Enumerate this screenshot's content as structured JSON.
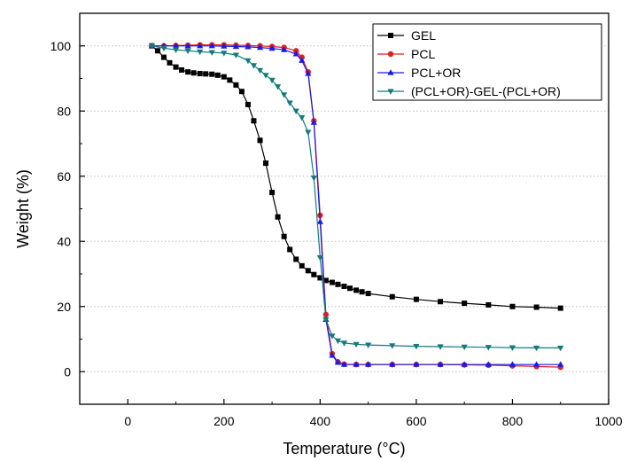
{
  "chart_data": {
    "type": "line",
    "xlabel": "Temperature (°C)",
    "ylabel": "Weight (%)",
    "xlim": [
      -100,
      1000
    ],
    "ylim": [
      -10,
      110
    ],
    "xticks": [
      0,
      200,
      400,
      600,
      800,
      1000
    ],
    "yticks": [
      0,
      20,
      40,
      60,
      80,
      100
    ],
    "grid": "horizontal dotted",
    "legend_position": "top-right",
    "series": [
      {
        "name": "GEL",
        "color": "#000000",
        "marker": "square",
        "x": [
          50,
          62,
          75,
          87,
          100,
          112,
          125,
          137,
          150,
          162,
          175,
          187,
          200,
          212,
          225,
          237,
          250,
          262,
          275,
          287,
          300,
          312,
          325,
          337,
          350,
          362,
          375,
          387,
          400,
          412,
          425,
          437,
          450,
          462,
          475,
          487,
          500,
          550,
          600,
          650,
          700,
          750,
          800,
          850,
          900
        ],
        "y": [
          100,
          98.5,
          96.5,
          94.8,
          93.5,
          92.6,
          92.0,
          91.7,
          91.5,
          91.4,
          91.3,
          91.0,
          90.5,
          89.5,
          88,
          86,
          82,
          77,
          71,
          64,
          55,
          47.5,
          41.5,
          37.5,
          34.5,
          32.5,
          31.0,
          29.8,
          28.8,
          28.0,
          27.4,
          26.8,
          26.2,
          25.6,
          25.0,
          24.5,
          24.0,
          23.0,
          22.2,
          21.5,
          21.0,
          20.5,
          20.0,
          19.8,
          19.5
        ]
      },
      {
        "name": "PCL",
        "color": "#e0201b",
        "marker": "circle",
        "x": [
          50,
          75,
          100,
          125,
          150,
          175,
          200,
          225,
          250,
          275,
          300,
          325,
          350,
          362,
          375,
          387,
          400,
          412,
          425,
          437,
          450,
          475,
          500,
          550,
          600,
          650,
          700,
          750,
          800,
          850,
          900
        ],
        "y": [
          100,
          100,
          100.1,
          100.2,
          100.3,
          100.3,
          100.3,
          100.2,
          100.1,
          100,
          99.8,
          99.5,
          98.5,
          96.5,
          92,
          77,
          48,
          17.5,
          5.5,
          3.0,
          2.3,
          2.2,
          2.2,
          2.2,
          2.2,
          2.2,
          2.1,
          2.0,
          1.8,
          1.6,
          1.4
        ]
      },
      {
        "name": "PCL+OR",
        "color": "#1a1ae6",
        "marker": "triangle-up",
        "x": [
          50,
          75,
          100,
          125,
          150,
          175,
          200,
          225,
          250,
          275,
          300,
          325,
          350,
          362,
          375,
          387,
          400,
          412,
          425,
          437,
          450,
          475,
          500,
          550,
          600,
          650,
          700,
          750,
          800,
          850,
          900
        ],
        "y": [
          100,
          100,
          100,
          100,
          100,
          100,
          99.9,
          99.8,
          99.7,
          99.5,
          99.2,
          98.8,
          97.5,
          95.5,
          91.5,
          76.5,
          46,
          16,
          5.0,
          2.8,
          2.2,
          2.2,
          2.2,
          2.2,
          2.2,
          2.2,
          2.2,
          2.2,
          2.2,
          2.2,
          2.2
        ]
      },
      {
        "name": "(PCL+OR)-GEL-(PCL+OR)",
        "color": "#147a7a",
        "marker": "triangle-down",
        "x": [
          50,
          75,
          100,
          125,
          150,
          175,
          200,
          225,
          250,
          262,
          275,
          287,
          300,
          312,
          325,
          337,
          350,
          362,
          375,
          387,
          400,
          412,
          425,
          437,
          450,
          475,
          500,
          550,
          600,
          650,
          700,
          750,
          800,
          850,
          900
        ],
        "y": [
          100,
          99.3,
          98.8,
          98.5,
          98.2,
          98.0,
          97.8,
          97.2,
          95.5,
          94,
          92.5,
          91,
          89.5,
          87.5,
          85,
          82.5,
          80,
          78,
          73.5,
          59.5,
          35,
          16,
          11,
          9.5,
          8.8,
          8.4,
          8.2,
          8.0,
          7.8,
          7.7,
          7.6,
          7.5,
          7.4,
          7.3,
          7.3
        ]
      }
    ]
  }
}
